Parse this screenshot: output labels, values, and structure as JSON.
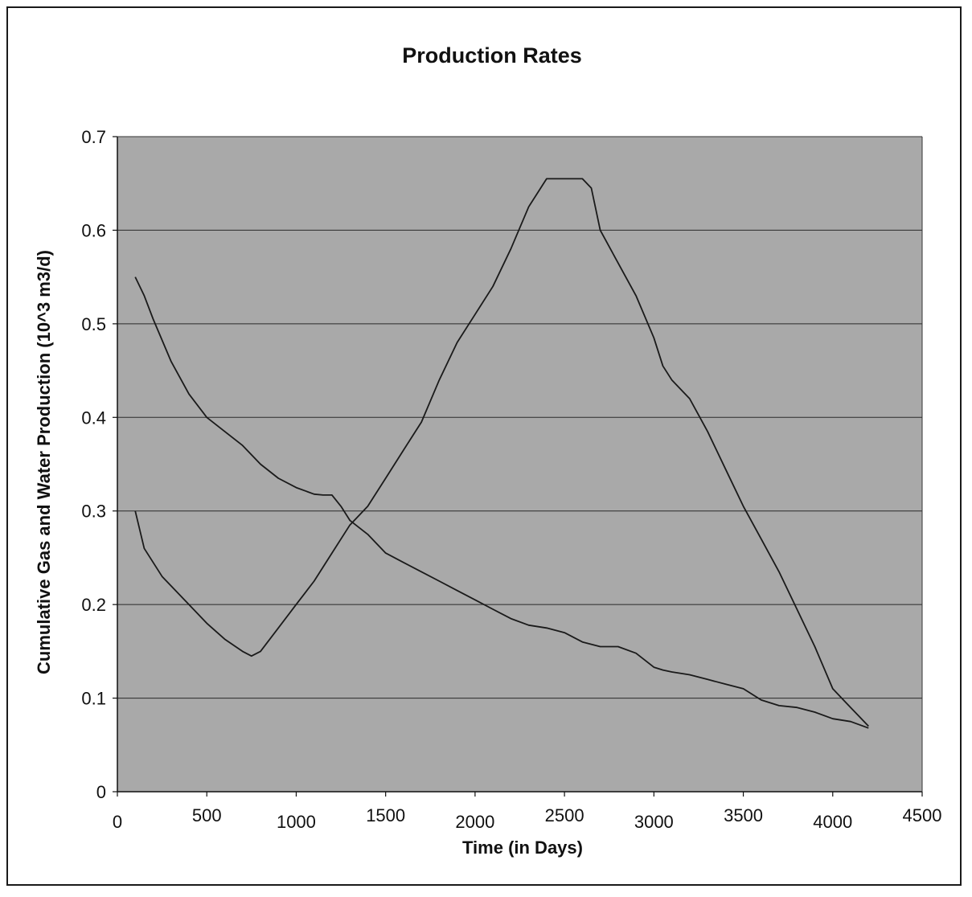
{
  "chart_data": {
    "type": "line",
    "title": "Production Rates",
    "xlabel": "Time (in Days)",
    "ylabel": "Cumulative Gas and Water Production (10^3 m3/d)",
    "xlim": [
      0,
      4500
    ],
    "ylim": [
      0,
      0.7
    ],
    "x_ticks": [
      "0",
      "500",
      "1000",
      "1500",
      "2000",
      "2500",
      "3000",
      "3500",
      "4000",
      "4500"
    ],
    "y_ticks": [
      "0",
      "0.1",
      "0.2",
      "0.3",
      "0.4",
      "0.5",
      "0.6",
      "0.7"
    ],
    "grid": "horizontal",
    "legend": "none",
    "colors": {
      "plot_bg": "#a9a9a9",
      "line": "#1a1a1a",
      "grid": "#2a2a2a"
    },
    "series": [
      {
        "x": [
          100,
          150,
          200,
          300,
          400,
          500,
          600,
          700,
          800,
          900,
          1000,
          1100,
          1150,
          1200,
          1250,
          1300,
          1400,
          1500,
          1600,
          1700,
          1800,
          1900,
          2000,
          2100,
          2200,
          2300,
          2400,
          2500,
          2600,
          2700,
          2800,
          2900,
          3000,
          3050,
          3100,
          3200,
          3300,
          3400,
          3500,
          3600,
          3700,
          3800,
          3900,
          4000,
          4100,
          4200
        ],
        "y": [
          0.55,
          0.53,
          0.505,
          0.46,
          0.425,
          0.4,
          0.385,
          0.37,
          0.35,
          0.335,
          0.325,
          0.318,
          0.317,
          0.317,
          0.305,
          0.29,
          0.275,
          0.255,
          0.245,
          0.235,
          0.225,
          0.215,
          0.205,
          0.195,
          0.185,
          0.178,
          0.175,
          0.17,
          0.16,
          0.155,
          0.155,
          0.148,
          0.133,
          0.13,
          0.128,
          0.125,
          0.12,
          0.115,
          0.11,
          0.098,
          0.092,
          0.09,
          0.085,
          0.078,
          0.075,
          0.068
        ]
      },
      {
        "x": [
          100,
          150,
          250,
          400,
          500,
          600,
          700,
          750,
          800,
          900,
          1000,
          1100,
          1200,
          1300,
          1400,
          1500,
          1600,
          1700,
          1800,
          1900,
          2000,
          2100,
          2200,
          2300,
          2400,
          2500,
          2600,
          2650,
          2700,
          2800,
          2900,
          3000,
          3050,
          3100,
          3200,
          3300,
          3400,
          3500,
          3600,
          3700,
          3800,
          3900,
          4000,
          4100,
          4200
        ],
        "y": [
          0.3,
          0.26,
          0.23,
          0.2,
          0.18,
          0.163,
          0.15,
          0.145,
          0.15,
          0.175,
          0.2,
          0.225,
          0.255,
          0.285,
          0.305,
          0.335,
          0.365,
          0.395,
          0.44,
          0.48,
          0.51,
          0.54,
          0.58,
          0.625,
          0.655,
          0.655,
          0.655,
          0.645,
          0.6,
          0.565,
          0.53,
          0.485,
          0.455,
          0.44,
          0.42,
          0.385,
          0.345,
          0.305,
          0.27,
          0.235,
          0.195,
          0.155,
          0.11,
          0.09,
          0.07
        ]
      }
    ]
  }
}
